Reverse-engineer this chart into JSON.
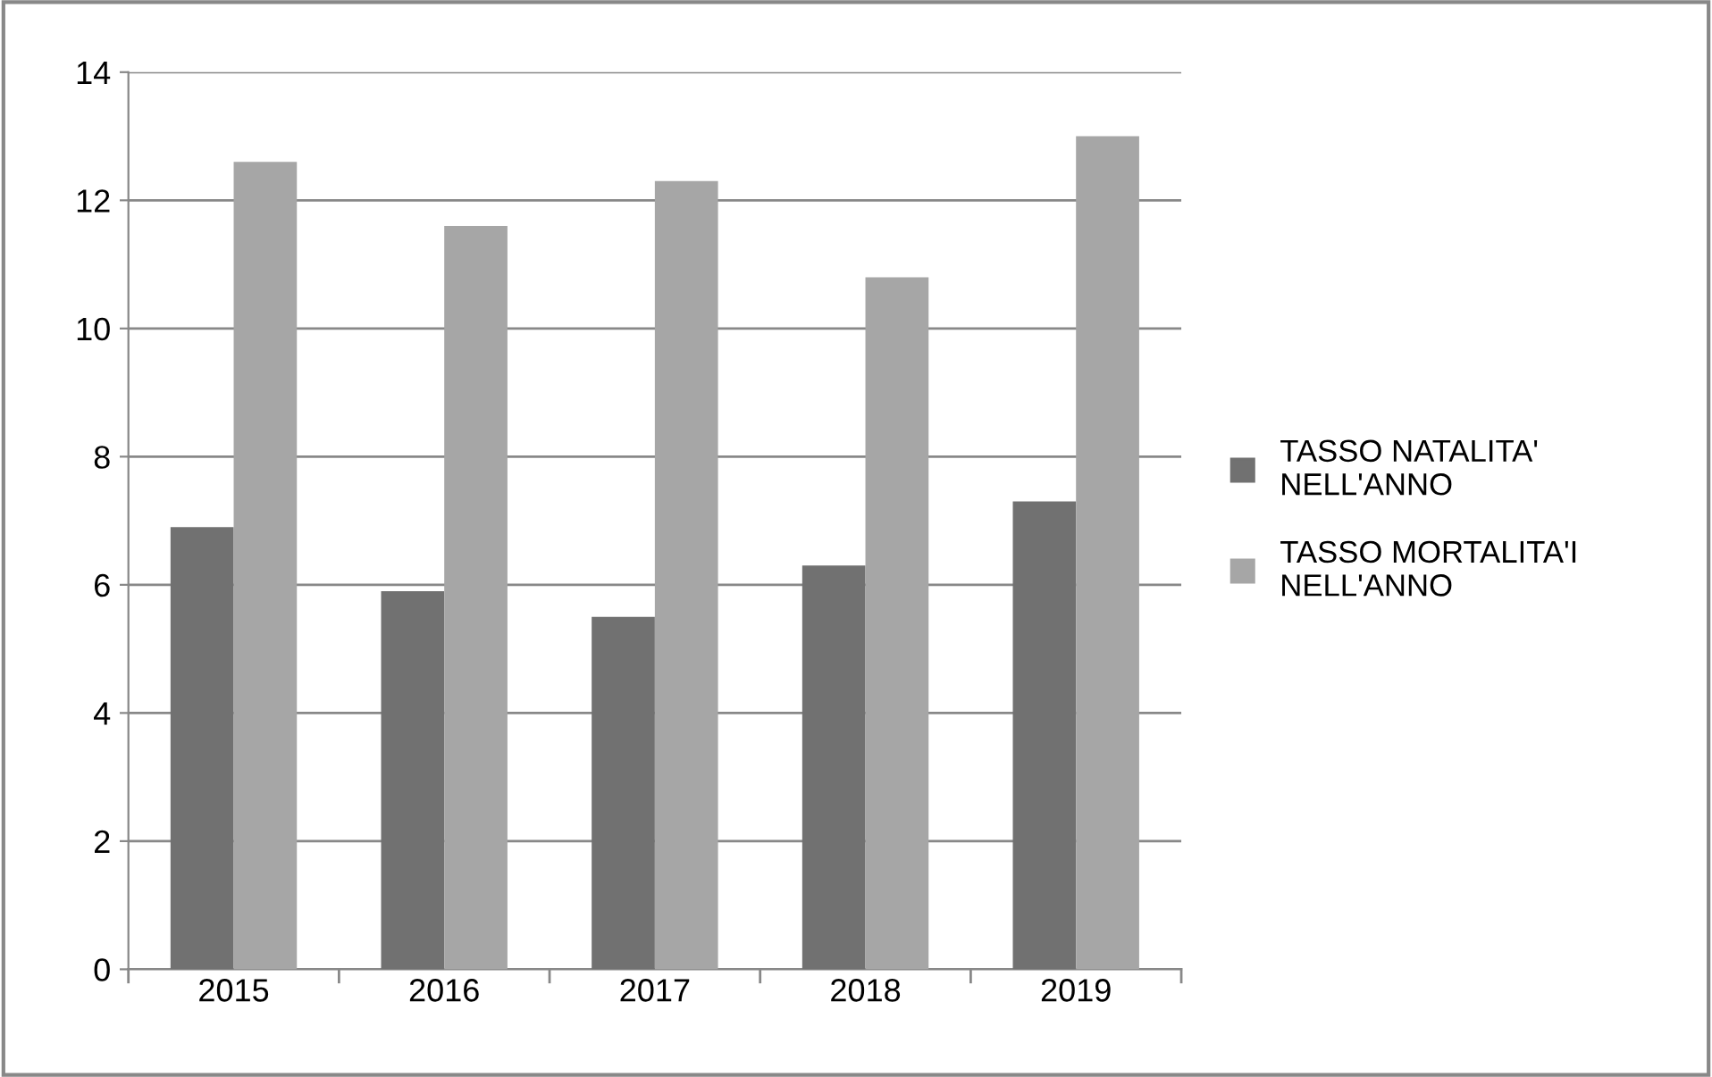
{
  "chart_data": {
    "type": "bar",
    "categories": [
      "2015",
      "2016",
      "2017",
      "2018",
      "2019"
    ],
    "series": [
      {
        "name": "TASSO NATALITA' NELL'ANNO",
        "color": "#717171",
        "values": [
          6.9,
          5.9,
          5.5,
          6.3,
          7.3
        ]
      },
      {
        "name": "TASSO MORTALITA'I NELL'ANNO",
        "color": "#a6a6a6",
        "values": [
          12.6,
          11.6,
          12.3,
          10.8,
          13.0
        ]
      }
    ],
    "ylim": [
      0,
      14
    ],
    "yticks": [
      0,
      2,
      4,
      6,
      8,
      10,
      12,
      14
    ],
    "grid": "y",
    "legend": "right"
  }
}
